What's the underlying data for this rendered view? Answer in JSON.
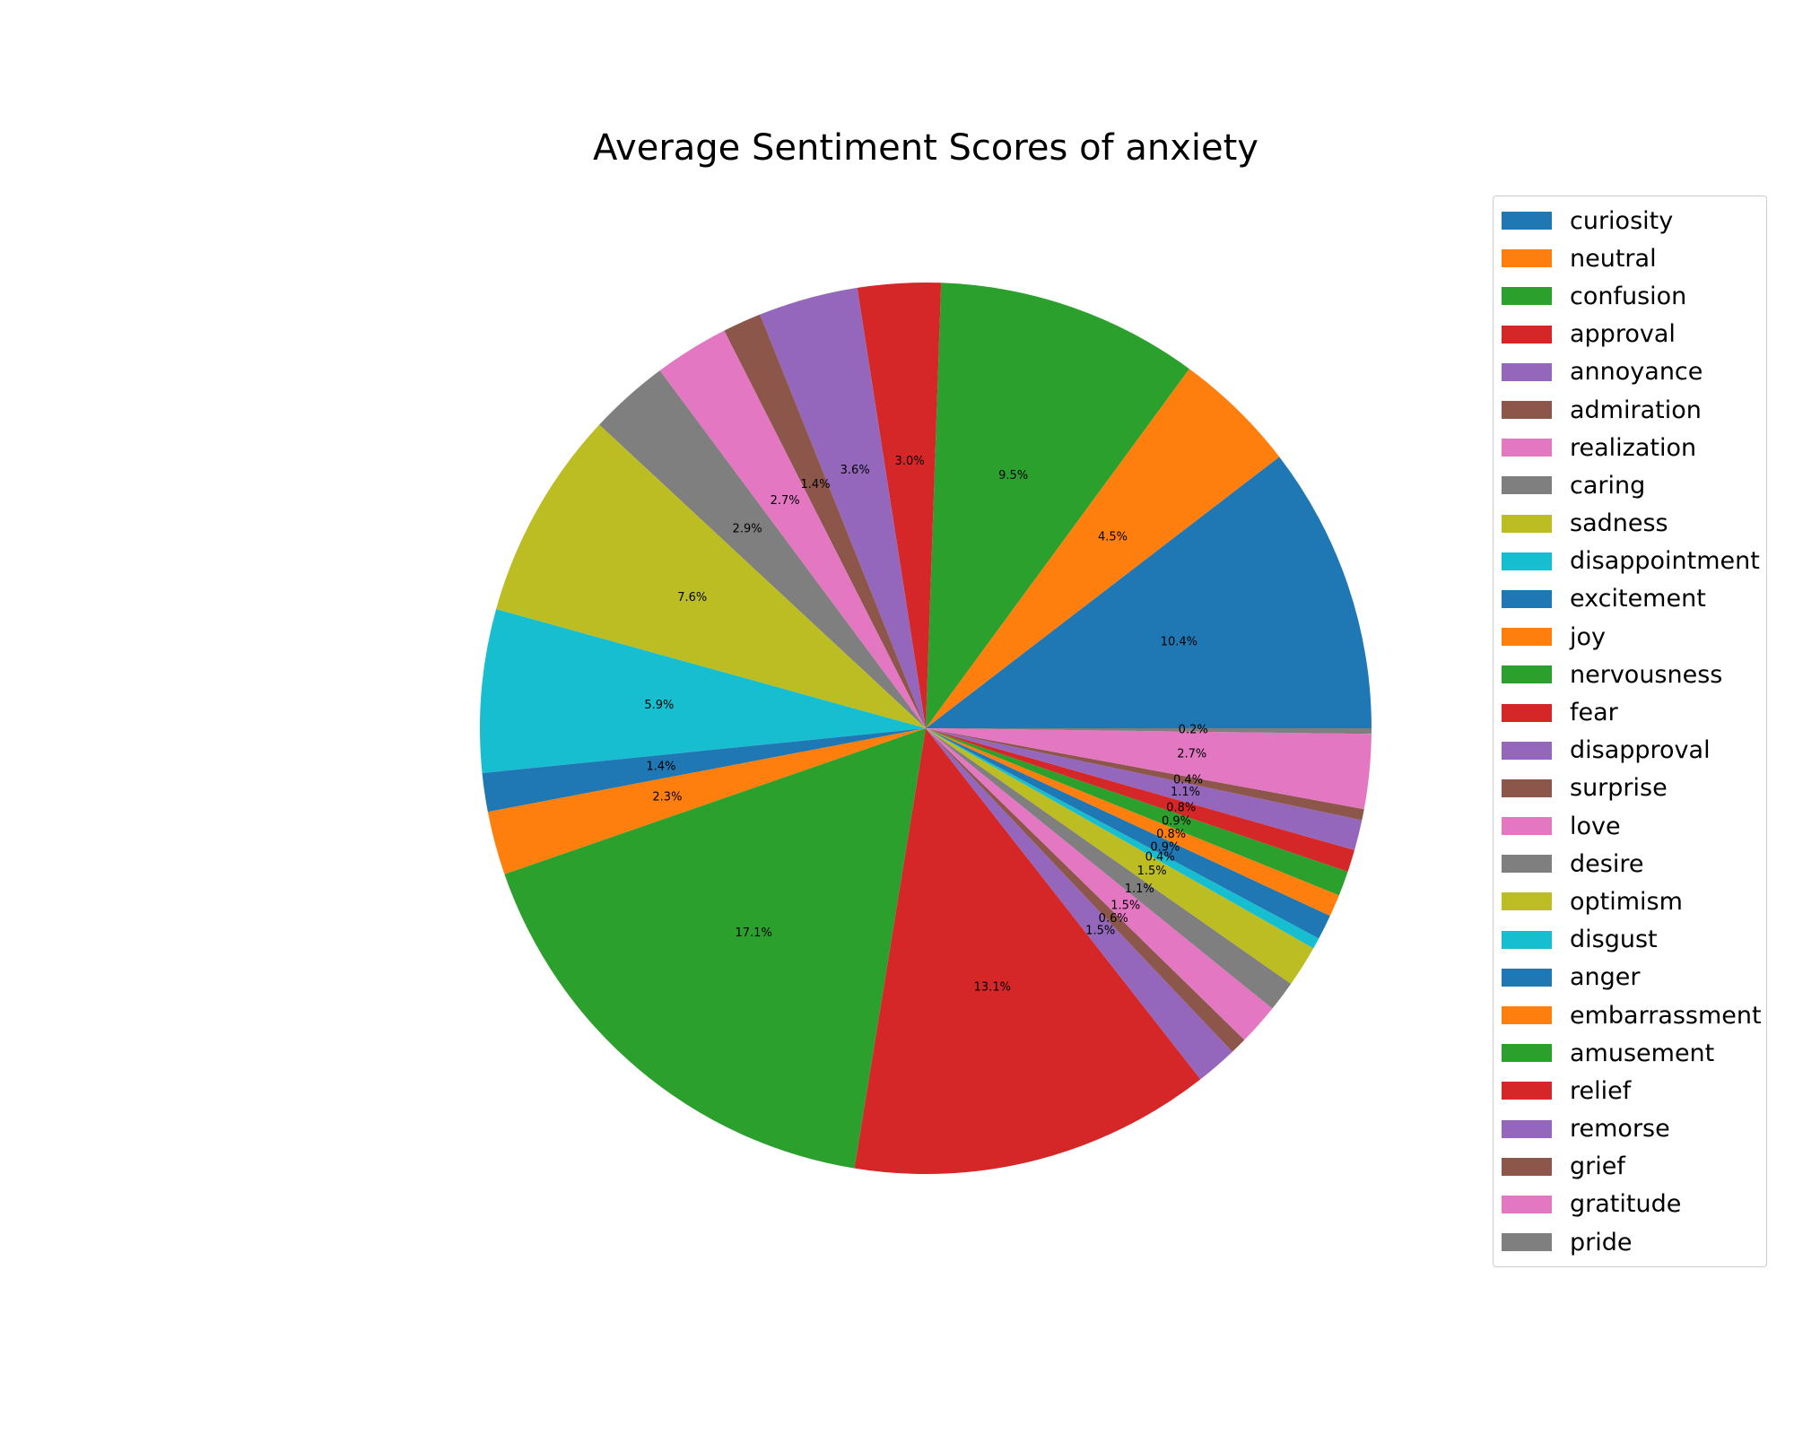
{
  "chart_data": {
    "type": "pie",
    "title": "Average Sentiment Scores of anxiety",
    "legend_position": "right",
    "startangle": 0,
    "counterclock": true,
    "slices": [
      {
        "label": "curiosity",
        "value": 10.4,
        "pct": "10.4%",
        "color": "#1f77b4"
      },
      {
        "label": "neutral",
        "value": 4.5,
        "pct": "4.5%",
        "color": "#ff7f0e"
      },
      {
        "label": "confusion",
        "value": 9.5,
        "pct": "9.5%",
        "color": "#2ca02c"
      },
      {
        "label": "approval",
        "value": 3.0,
        "pct": "3.0%",
        "color": "#d62728"
      },
      {
        "label": "annoyance",
        "value": 3.6,
        "pct": "3.6%",
        "color": "#9467bd"
      },
      {
        "label": "admiration",
        "value": 1.4,
        "pct": "1.4%",
        "color": "#8c564b"
      },
      {
        "label": "realization",
        "value": 2.7,
        "pct": "2.7%",
        "color": "#e377c2"
      },
      {
        "label": "caring",
        "value": 2.9,
        "pct": "2.9%",
        "color": "#7f7f7f"
      },
      {
        "label": "sadness",
        "value": 7.6,
        "pct": "7.6%",
        "color": "#bcbd22"
      },
      {
        "label": "disappointment",
        "value": 5.9,
        "pct": "5.9%",
        "color": "#17becf"
      },
      {
        "label": "excitement",
        "value": 1.4,
        "pct": "1.4%",
        "color": "#1f77b4"
      },
      {
        "label": "joy",
        "value": 2.3,
        "pct": "2.3%",
        "color": "#ff7f0e"
      },
      {
        "label": "nervousness",
        "value": 17.1,
        "pct": "17.1%",
        "color": "#2ca02c"
      },
      {
        "label": "fear",
        "value": 13.1,
        "pct": "13.1%",
        "color": "#d62728"
      },
      {
        "label": "disapproval",
        "value": 1.5,
        "pct": "1.5%",
        "color": "#9467bd"
      },
      {
        "label": "surprise",
        "value": 0.6,
        "pct": "0.6%",
        "color": "#8c564b"
      },
      {
        "label": "love",
        "value": 1.5,
        "pct": "1.5%",
        "color": "#e377c2"
      },
      {
        "label": "desire",
        "value": 1.1,
        "pct": "1.1%",
        "color": "#7f7f7f"
      },
      {
        "label": "optimism",
        "value": 1.5,
        "pct": "1.5%",
        "color": "#bcbd22"
      },
      {
        "label": "disgust",
        "value": 0.4,
        "pct": "0.4%",
        "color": "#17becf"
      },
      {
        "label": "anger",
        "value": 0.9,
        "pct": "0.9%",
        "color": "#1f77b4"
      },
      {
        "label": "embarrassment",
        "value": 0.8,
        "pct": "0.8%",
        "color": "#ff7f0e"
      },
      {
        "label": "amusement",
        "value": 0.9,
        "pct": "0.9%",
        "color": "#2ca02c"
      },
      {
        "label": "relief",
        "value": 0.8,
        "pct": "0.8%",
        "color": "#d62728"
      },
      {
        "label": "remorse",
        "value": 1.1,
        "pct": "1.1%",
        "color": "#9467bd"
      },
      {
        "label": "grief",
        "value": 0.4,
        "pct": "0.4%",
        "color": "#8c564b"
      },
      {
        "label": "gratitude",
        "value": 2.7,
        "pct": "2.7%",
        "color": "#e377c2"
      },
      {
        "label": "pride",
        "value": 0.2,
        "pct": "0.2%",
        "color": "#7f7f7f"
      }
    ]
  }
}
